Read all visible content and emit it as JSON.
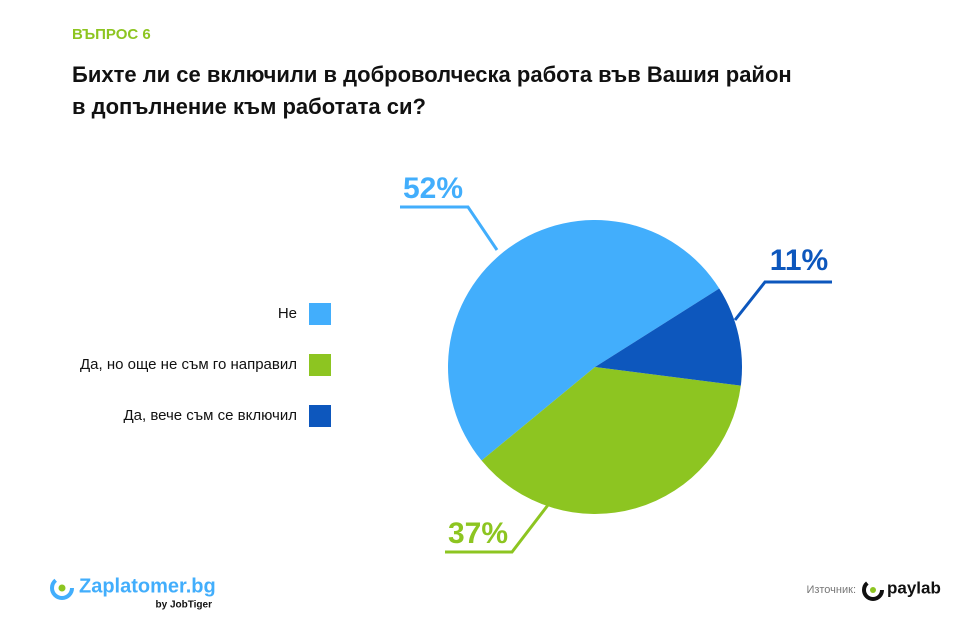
{
  "chart_data": {
    "type": "pie",
    "kicker": "ВЪПРОС 6",
    "title": [
      "Бихте ли се включили в доброволческа работа във Вашия район",
      "в допълнение към работата си?"
    ],
    "categories": [
      "Не",
      "Да, но още не съм го направил",
      "Да, вече съм се включил"
    ],
    "values": [
      52,
      37,
      11
    ],
    "value_labels": [
      "52%",
      "37%",
      "11%"
    ],
    "colors": [
      "#42aefc",
      "#8dc521",
      "#0d57bd"
    ],
    "legend": "left"
  },
  "footer": {
    "brand": "Zaplatomer.bg",
    "brand_by": "by JobTiger",
    "source_label": "Източник:",
    "source": "paylab"
  }
}
